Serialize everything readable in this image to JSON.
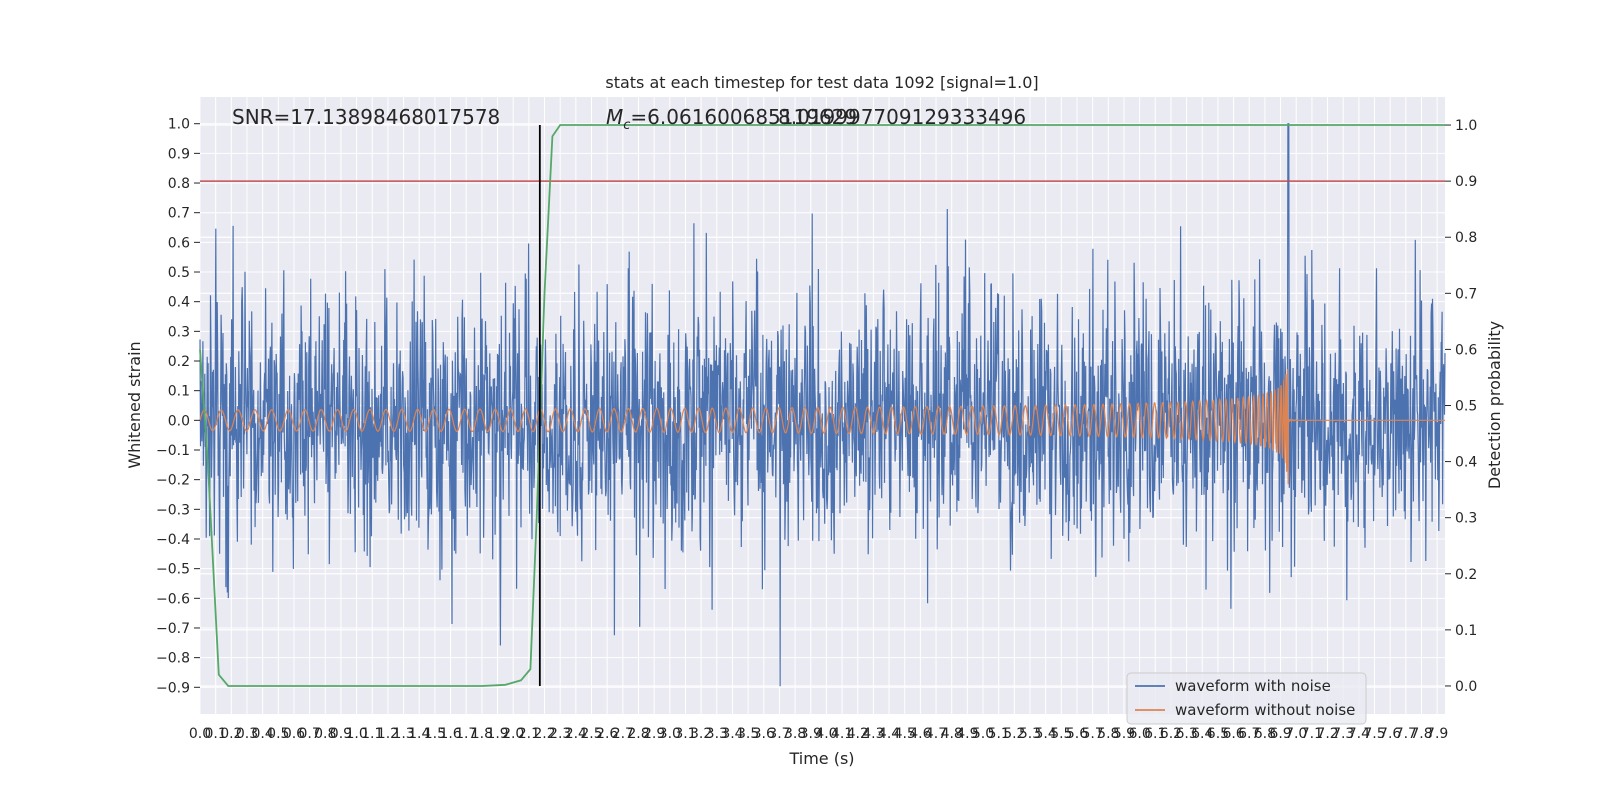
{
  "chart_data": {
    "type": "line",
    "title": "stats at each timestep for test data 1092 [signal=1.0]",
    "xlabel": "Time (s)",
    "ylabel_left": "Whitened strain",
    "ylabel_right": "Detection probability",
    "xlim": [
      0.0,
      7.95
    ],
    "ylim_left": [
      -0.99,
      1.09
    ],
    "ylim_right": [
      -0.05,
      1.05
    ],
    "grid": true,
    "x_ticks": [
      "0.0",
      "0.1",
      "0.2",
      "0.3",
      "0.4",
      "0.5",
      "0.6",
      "0.7",
      "0.8",
      "0.9",
      "1.0",
      "1.1",
      "1.2",
      "1.3",
      "1.4",
      "1.5",
      "1.6",
      "1.7",
      "1.8",
      "1.9",
      "2.0",
      "2.1",
      "2.2",
      "2.3",
      "2.4",
      "2.5",
      "2.6",
      "2.7",
      "2.8",
      "2.9",
      "3.0",
      "3.1",
      "3.2",
      "3.3",
      "3.4",
      "3.5",
      "3.6",
      "3.7",
      "3.8",
      "3.9",
      "4.0",
      "4.1",
      "4.2",
      "4.3",
      "4.4",
      "4.5",
      "4.6",
      "4.7",
      "4.8",
      "4.9",
      "5.0",
      "5.1",
      "5.2",
      "5.3",
      "5.4",
      "5.5",
      "5.6",
      "5.7",
      "5.8",
      "5.9",
      "6.0",
      "6.1",
      "6.2",
      "6.3",
      "6.4",
      "6.5",
      "6.6",
      "6.7",
      "6.8",
      "6.9",
      "7.0",
      "7.1",
      "7.2",
      "7.3",
      "7.4",
      "7.5",
      "7.6",
      "7.7",
      "7.8",
      "7.9"
    ],
    "y_ticks_left": [
      "−0.9",
      "−0.8",
      "−0.7",
      "−0.6",
      "−0.5",
      "−0.4",
      "−0.3",
      "−0.2",
      "−0.1",
      "0.0",
      "0.1",
      "0.2",
      "0.3",
      "0.4",
      "0.5",
      "0.6",
      "0.7",
      "0.8",
      "0.9",
      "1.0"
    ],
    "y_ticks_right": [
      "0.0",
      "0.1",
      "0.2",
      "0.3",
      "0.4",
      "0.5",
      "0.6",
      "0.7",
      "0.8",
      "0.9",
      "1.0"
    ],
    "annotations": {
      "snr": "SNR=17.13898468017578",
      "mc_symbol": "M",
      "mc_sub": "c",
      "mc_value": "=6.061600685119629",
      "overlap_text": "8.019997709129333496"
    },
    "threshold_line": {
      "axis": "right",
      "value": 0.9,
      "color": "#c44e52"
    },
    "vertical_marker": {
      "x": 2.17,
      "color": "#000000"
    },
    "series": [
      {
        "name": "waveform with noise",
        "axis": "left",
        "color": "#4c72b0",
        "description": "dense noisy strain, approx range -0.9 to 1.0"
      },
      {
        "name": "waveform without noise",
        "axis": "left",
        "color": "#dd8452",
        "description": "chirp signal, amplitude 0.02 growing to ~0.3 at merger (6.95 s), then ringdown near 0"
      },
      {
        "name": "detection probability",
        "axis": "right",
        "color": "#55a868",
        "x": [
          0.0,
          0.05,
          0.12,
          0.18,
          1.8,
          1.95,
          2.05,
          2.11,
          2.15,
          2.2,
          2.25,
          2.3,
          7.95
        ],
        "y": [
          0.6,
          0.4,
          0.02,
          0.0,
          0.0,
          0.002,
          0.01,
          0.03,
          0.3,
          0.7,
          0.98,
          1.0,
          1.0
        ]
      }
    ],
    "legend": {
      "position": "bottom-right",
      "entries": [
        {
          "label": "waveform with noise",
          "color": "#4c72b0"
        },
        {
          "label": "waveform without noise",
          "color": "#dd8452"
        }
      ]
    }
  }
}
